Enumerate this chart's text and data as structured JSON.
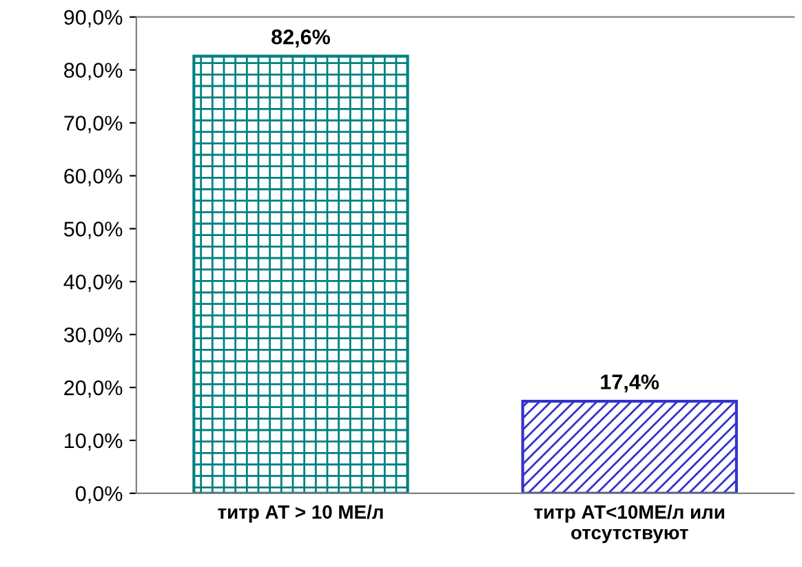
{
  "chart_data": {
    "type": "bar",
    "categories": [
      "титр АТ > 10 МЕ/л",
      "титр АТ<10МЕ/л или\nотсутствуют"
    ],
    "values": [
      82.6,
      17.4
    ],
    "colors": [
      "#008080",
      "#3333cc"
    ],
    "value_labels": [
      "82,6%",
      "17,4%"
    ],
    "ylim": [
      0,
      90
    ],
    "yticks": [
      {
        "value": 0,
        "label": "0,0%"
      },
      {
        "value": 10,
        "label": "10,0%"
      },
      {
        "value": 20,
        "label": "20,0%"
      },
      {
        "value": 30,
        "label": "30,0%"
      },
      {
        "value": 40,
        "label": "40,0%"
      },
      {
        "value": 50,
        "label": "50,0%"
      },
      {
        "value": 60,
        "label": "60,0%"
      },
      {
        "value": 70,
        "label": "70,0%"
      },
      {
        "value": 80,
        "label": "80,0%"
      },
      {
        "value": 90,
        "label": "90,0%"
      }
    ],
    "grid": false,
    "legend": false
  }
}
